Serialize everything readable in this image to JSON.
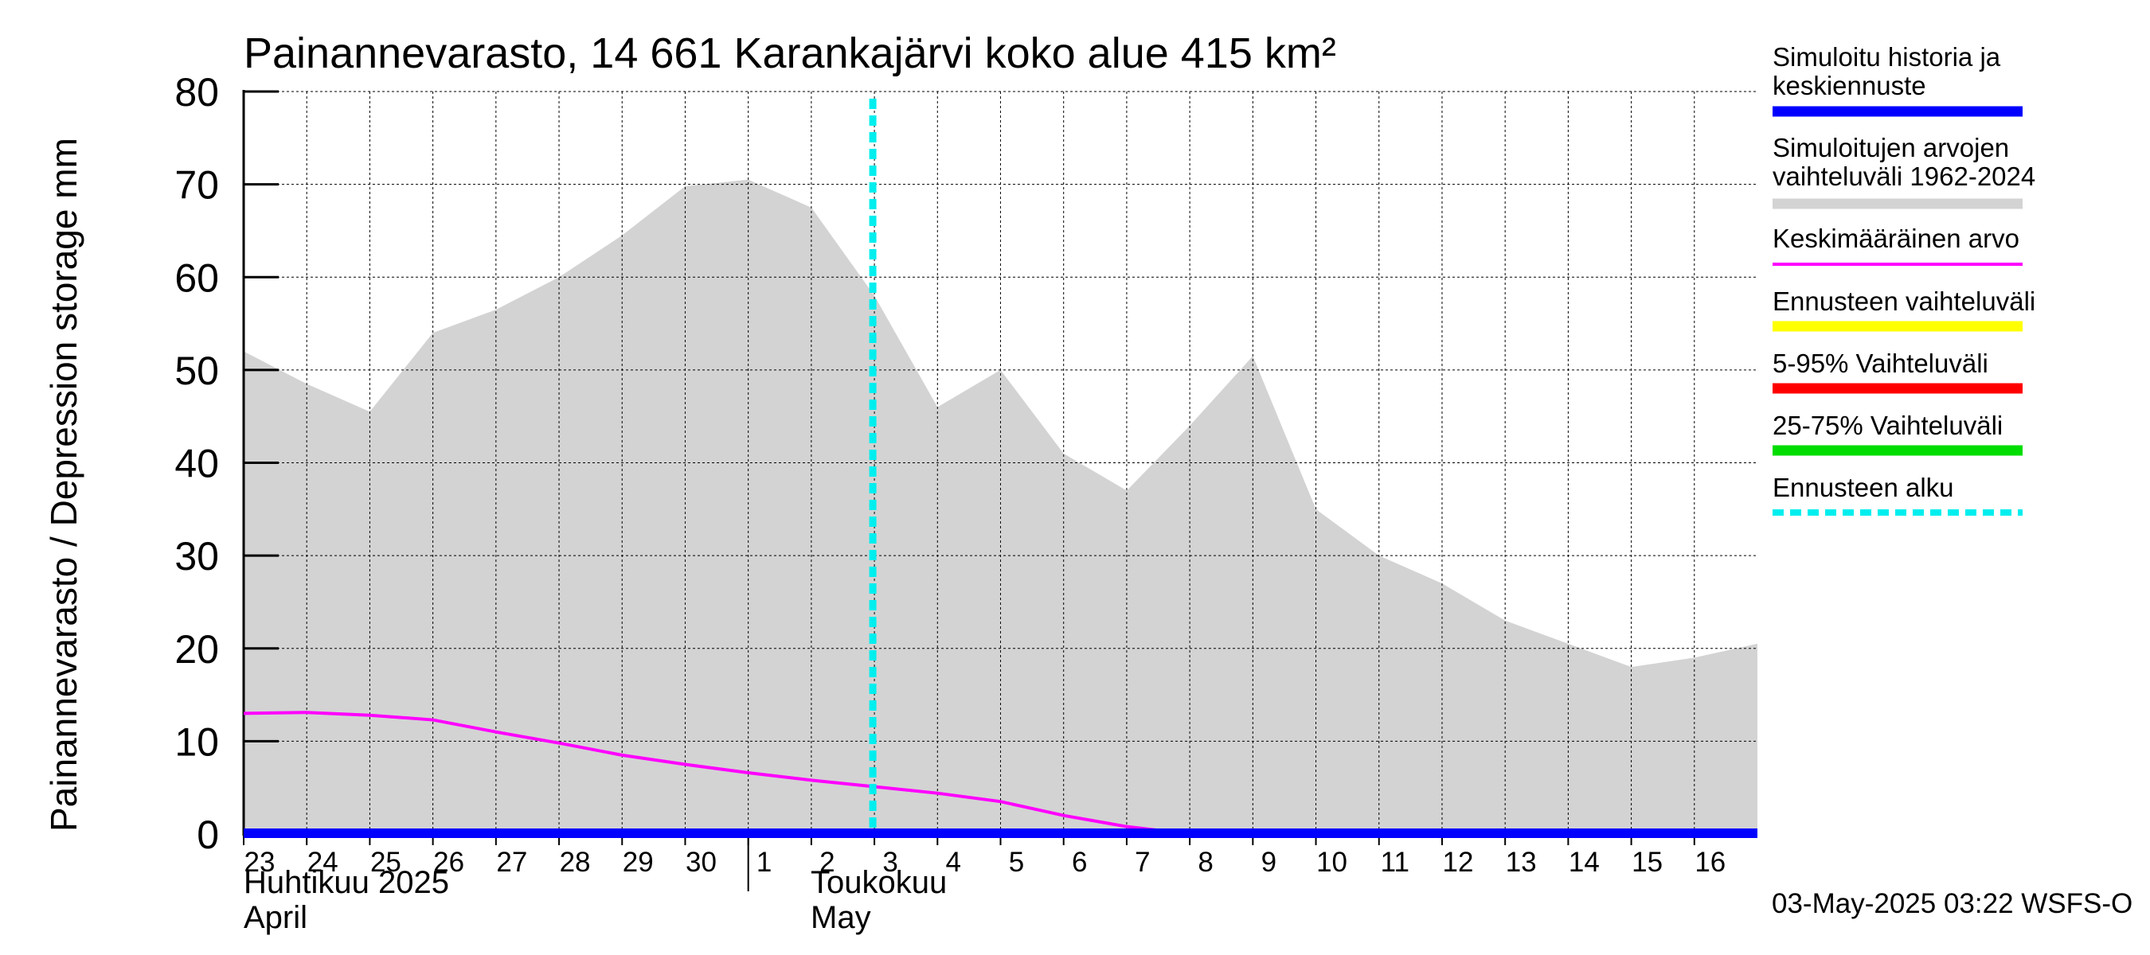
{
  "title": "Painannevarasto, 14 661 Karankajärvi koko alue 415 km²",
  "y_label": "Painannevarasto / Depression storage    mm",
  "timestamp": "03-May-2025 03:22 WSFS-O",
  "month_labels": [
    {
      "line1": "Huhtikuu  2025",
      "line2": "April"
    },
    {
      "line1": "Toukokuu",
      "line2": "May"
    }
  ],
  "colors": {
    "history": "#0000ff",
    "range": "#d3d3d3",
    "mean": "#ff00ff",
    "forecast_range": "#ffff00",
    "p5_95": "#ff0000",
    "p25_75": "#00dd00",
    "forecast_start": "#00eeee"
  },
  "legend": [
    {
      "label": "Simuloitu historia ja keskiennuste",
      "color": "#0000ff",
      "style": "solid"
    },
    {
      "label": "Simuloitujen arvojen vaihteluväli 1962-2024",
      "color": "#d3d3d3",
      "style": "solid"
    },
    {
      "label": "Keskimääräinen arvo",
      "color": "#ff00ff",
      "style": "thin"
    },
    {
      "label": "Ennusteen vaihteluväli",
      "color": "#ffff00",
      "style": "solid"
    },
    {
      "label": "5-95% Vaihteluväli",
      "color": "#ff0000",
      "style": "solid"
    },
    {
      "label": "25-75% Vaihteluväli",
      "color": "#00dd00",
      "style": "solid"
    },
    {
      "label": "Ennusteen alku",
      "color": "#00eeee",
      "style": "dashed"
    }
  ],
  "chart_data": {
    "type": "area",
    "x_ticks": [
      "23",
      "24",
      "25",
      "26",
      "27",
      "28",
      "29",
      "30",
      "1",
      "2",
      "3",
      "4",
      "5",
      "6",
      "7",
      "8",
      "9",
      "10",
      "11",
      "12",
      "13",
      "14",
      "15",
      "16"
    ],
    "x": [
      0,
      1,
      2,
      3,
      4,
      5,
      6,
      7,
      8,
      9,
      10,
      11,
      12,
      13,
      14,
      15,
      16,
      17,
      18,
      19,
      20,
      21,
      22,
      23,
      24
    ],
    "ylim": [
      0,
      80
    ],
    "y_ticks": [
      0,
      10,
      20,
      30,
      40,
      50,
      60,
      70,
      80
    ],
    "forecast_start_x": 10,
    "grid": true,
    "series": [
      {
        "name": "Simuloitujen arvojen vaihteluväli 1962-2024",
        "kind": "band",
        "upper": [
          52,
          48.5,
          45.5,
          54,
          56.5,
          60,
          64.5,
          69.8,
          70.5,
          67.5,
          58,
          46,
          50,
          41,
          37,
          44,
          51.5,
          35,
          30,
          27,
          23,
          20.5,
          18,
          19,
          20.5
        ],
        "lower": [
          0,
          0,
          0,
          0,
          0,
          0,
          0,
          0,
          0,
          0,
          0,
          0,
          0,
          0,
          0,
          0,
          0,
          0,
          0,
          0,
          0,
          0,
          0,
          0,
          0
        ]
      },
      {
        "name": "Keskimääräinen arvo",
        "kind": "line",
        "values": [
          13,
          13.1,
          12.8,
          12.3,
          11,
          9.8,
          8.5,
          7.5,
          6.6,
          5.8,
          5.1,
          4.4,
          3.5,
          2,
          0.8,
          0,
          0,
          0,
          0,
          0,
          0,
          0,
          0,
          0,
          0
        ]
      },
      {
        "name": "Simuloitu historia ja keskiennuste",
        "kind": "line",
        "values": [
          0,
          0,
          0,
          0,
          0,
          0,
          0,
          0,
          0,
          0,
          0,
          0,
          0,
          0,
          0,
          0,
          0,
          0,
          0,
          0,
          0,
          0,
          0,
          0,
          0
        ]
      }
    ]
  }
}
